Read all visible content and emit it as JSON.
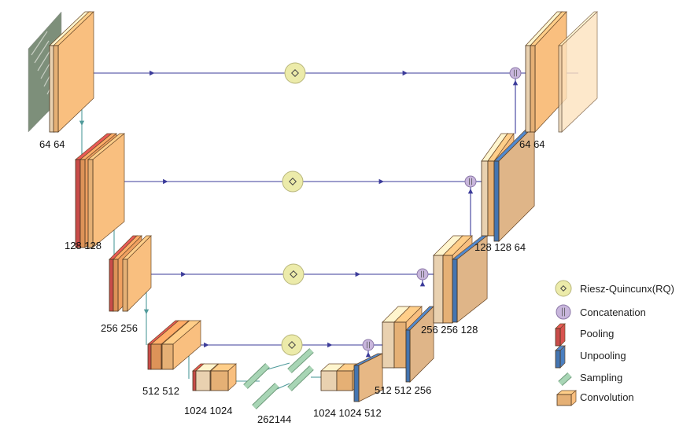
{
  "encoder_labels": [
    "64 64",
    "128 128",
    "256 256",
    "512 512"
  ],
  "bottleneck_labels": [
    "1024 1024",
    "262144",
    "1024 1024 512"
  ],
  "decoder_labels": [
    "512 512 256",
    "256 256 128",
    "128 128 64",
    "64 64"
  ],
  "legend": [
    {
      "icon": "riesz-quincunx-icon",
      "label": "Riesz-Quincunx(RQ)"
    },
    {
      "icon": "concatenation-icon",
      "label": "Concatenation"
    },
    {
      "icon": "pooling-icon",
      "label": "Pooling"
    },
    {
      "icon": "unpooling-icon",
      "label": "Unpooling"
    },
    {
      "icon": "sampling-icon",
      "label": "Sampling"
    },
    {
      "icon": "convolution-icon",
      "label": "Convolution"
    }
  ],
  "colors": {
    "convolution": "#f9bf7f",
    "convolution_light": "#fde3bf",
    "pooling": "#d9534f",
    "unpooling": "#4a7fc0",
    "sampling": "#a8d5b5",
    "rq": "#ecebaa",
    "concat": "#c8b6dc",
    "skip_line": "#3b3b9a",
    "down_line": "#4f9a9a"
  }
}
